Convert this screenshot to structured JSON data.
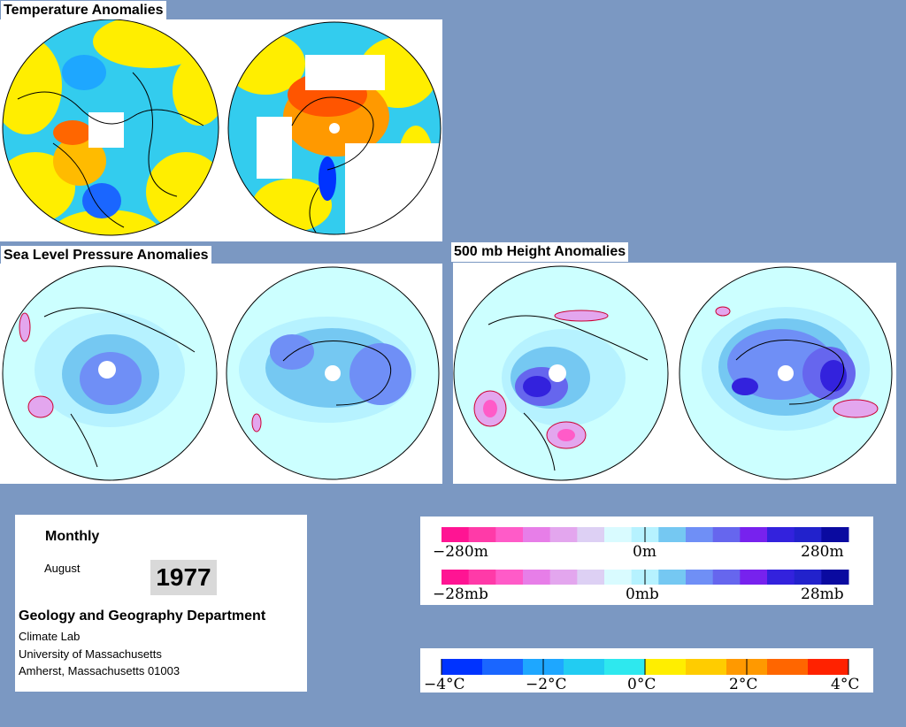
{
  "sections": {
    "temperature_title": "Temperature Anomalies",
    "slp_title": "Sea Level Pressure Anomalies",
    "height_title": "500 mb Height Anomalies"
  },
  "info": {
    "period": "Monthly",
    "month": "August",
    "year": "1977",
    "department": "Geology and Geography Department",
    "lab": "Climate Lab",
    "university": "University of Massachusetts",
    "address": "Amherst, Massachusetts 01003"
  },
  "legends": {
    "height": {
      "min": "−280m",
      "mid": "0m",
      "max": "280m"
    },
    "pressure": {
      "min": "−28mb",
      "mid": "0mb",
      "max": "28mb"
    },
    "temperature": {
      "labels": [
        "−4°C",
        "−2°C",
        "0°C",
        "2°C",
        "4°C"
      ]
    }
  },
  "colors": {
    "background": "#7b98c2",
    "anomaly_scale": [
      "#ff1493",
      "#ff3aa8",
      "#ff5bc8",
      "#e77ee8",
      "#e3a6ee",
      "#ddd0f4",
      "#d9fbff",
      "#b6f2ff",
      "#75c8f2",
      "#6f8ff6",
      "#6666ee",
      "#7722ee",
      "#3322dd",
      "#2222cc",
      "#0a0aa0"
    ],
    "temperature_scale": [
      "#0033ff",
      "#1a66ff",
      "#1ea7ff",
      "#22ccf2",
      "#2ee8ee",
      "#ffee00",
      "#ffcc00",
      "#ff9900",
      "#ff6600",
      "#ff2200"
    ]
  }
}
